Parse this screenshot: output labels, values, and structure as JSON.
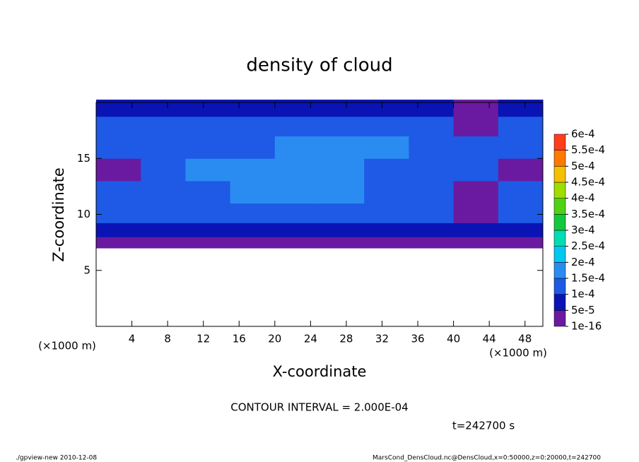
{
  "chart_data": {
    "type": "contour",
    "title": "density of cloud",
    "xlabel": "X-coordinate",
    "ylabel": "Z-coordinate",
    "x_unit": "(×1000 m)",
    "y_unit": "(×1000 m)",
    "annotation": "CONTOUR INTERVAL = 2.000E-04",
    "time_label": "t=242700 s",
    "footer_left": "./gpview-new  2010-12-08",
    "footer_right": "MarsCond_DensCloud.nc@DensCloud,x=0:50000,z=0:20000,t=242700",
    "xlim": [
      0,
      50
    ],
    "ylim": [
      0,
      20
    ],
    "xticks": [
      4,
      8,
      12,
      16,
      20,
      24,
      28,
      32,
      36,
      40,
      44,
      48
    ],
    "yticks": [
      5,
      10,
      15
    ],
    "x": [
      2.5,
      7.5,
      12.5,
      17.5,
      22.5,
      27.5,
      32.5,
      37.5,
      42.5,
      47.5
    ],
    "z": [
      7.5,
      8.5,
      10,
      12,
      14,
      16,
      18,
      19.5
    ],
    "values": [
      [
        3e-05,
        3e-05,
        3e-05,
        3e-05,
        3e-05,
        3e-05,
        3e-05,
        3e-05,
        3e-05,
        3e-05
      ],
      [
        7e-05,
        7e-05,
        7e-05,
        7e-05,
        7e-05,
        7e-05,
        7e-05,
        7e-05,
        7e-05,
        7e-05
      ],
      [
        0.00012,
        0.00012,
        0.00012,
        0.00012,
        0.00012,
        0.00012,
        0.00011,
        0.00011,
        4e-05,
        0.00011
      ],
      [
        0.00013,
        0.00013,
        0.00014,
        0.00016,
        0.00016,
        0.00016,
        0.00014,
        0.00013,
        4e-05,
        0.00012
      ],
      [
        4e-05,
        0.00013,
        0.00016,
        0.00016,
        0.00016,
        0.00016,
        0.00014,
        0.00014,
        0.00012,
        4e-05
      ],
      [
        0.00012,
        0.00013,
        0.00014,
        0.00014,
        0.00016,
        0.00016,
        0.00016,
        0.00014,
        0.00012,
        0.00011
      ],
      [
        0.00011,
        0.00012,
        0.00012,
        0.00012,
        0.00013,
        0.00013,
        0.00013,
        0.00012,
        4e-05,
        0.00011
      ],
      [
        8e-05,
        8e-05,
        8e-05,
        8e-05,
        8e-05,
        8e-05,
        8e-05,
        8e-05,
        3e-05,
        8e-05
      ]
    ],
    "levels": [
      {
        "value": 1e-16,
        "label": "1e-16"
      },
      {
        "value": 5e-05,
        "label": "5e-5"
      },
      {
        "value": 0.0001,
        "label": "1e-4"
      },
      {
        "value": 0.00015,
        "label": "1.5e-4"
      },
      {
        "value": 0.0002,
        "label": "2e-4"
      },
      {
        "value": 0.00025,
        "label": "2.5e-4"
      },
      {
        "value": 0.0003,
        "label": "3e-4"
      },
      {
        "value": 0.00035,
        "label": "3.5e-4"
      },
      {
        "value": 0.0004,
        "label": "4e-4"
      },
      {
        "value": 0.00045,
        "label": "4.5e-4"
      },
      {
        "value": 0.0005,
        "label": "5e-4"
      },
      {
        "value": 0.00055,
        "label": "5.5e-4"
      },
      {
        "value": 0.0006,
        "label": "6e-4"
      }
    ],
    "colors": [
      "#6a1aa0",
      "#0a14b4",
      "#1e5ae6",
      "#2a8cf0",
      "#00c8f0",
      "#00dcb4",
      "#14c83c",
      "#50d214",
      "#a0dc00",
      "#f5c000",
      "#ff7800",
      "#ff3c1e",
      "#ff8c8c"
    ]
  }
}
